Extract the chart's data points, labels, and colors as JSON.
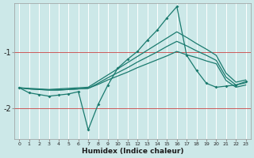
{
  "xlabel": "Humidex (Indice chaleur)",
  "bg_color": "#cce8e8",
  "line_color": "#1a7a6e",
  "red_line_color": "#cc4444",
  "x": [
    0,
    1,
    2,
    3,
    4,
    5,
    6,
    7,
    8,
    9,
    10,
    11,
    12,
    13,
    14,
    15,
    16,
    17,
    18,
    19,
    20,
    21,
    22,
    23
  ],
  "main": [
    -1.63,
    -1.72,
    -1.75,
    -1.78,
    -1.76,
    -1.74,
    -1.7,
    -2.38,
    -1.93,
    -1.58,
    -1.28,
    -1.12,
    -0.98,
    -0.78,
    -0.6,
    -0.38,
    -0.18,
    -1.05,
    -1.32,
    -1.55,
    -1.62,
    -1.6,
    -1.58,
    -1.52
  ],
  "smooth1": [
    -1.63,
    -1.65,
    -1.66,
    -1.67,
    -1.67,
    -1.66,
    -1.65,
    -1.64,
    -1.57,
    -1.49,
    -1.42,
    -1.35,
    -1.27,
    -1.2,
    -1.13,
    -1.06,
    -0.98,
    -1.04,
    -1.09,
    -1.15,
    -1.2,
    -1.5,
    -1.62,
    -1.58
  ],
  "smooth2": [
    -1.63,
    -1.65,
    -1.66,
    -1.67,
    -1.67,
    -1.66,
    -1.65,
    -1.64,
    -1.55,
    -1.45,
    -1.36,
    -1.27,
    -1.17,
    -1.08,
    -0.99,
    -0.89,
    -0.8,
    -0.88,
    -0.97,
    -1.05,
    -1.14,
    -1.44,
    -1.58,
    -1.54
  ],
  "smooth3": [
    -1.63,
    -1.64,
    -1.65,
    -1.66,
    -1.65,
    -1.64,
    -1.63,
    -1.62,
    -1.51,
    -1.4,
    -1.29,
    -1.18,
    -1.07,
    -0.96,
    -0.85,
    -0.74,
    -0.63,
    -0.73,
    -0.84,
    -0.94,
    -1.05,
    -1.37,
    -1.53,
    -1.49
  ],
  "ylim": [
    -2.55,
    -0.12
  ],
  "xlim": [
    -0.5,
    23.5
  ],
  "yticks": [
    -2.0,
    -1.0
  ],
  "xticks": [
    0,
    1,
    2,
    3,
    4,
    5,
    6,
    7,
    8,
    9,
    10,
    11,
    12,
    13,
    14,
    15,
    16,
    17,
    18,
    19,
    20,
    21,
    22,
    23
  ]
}
